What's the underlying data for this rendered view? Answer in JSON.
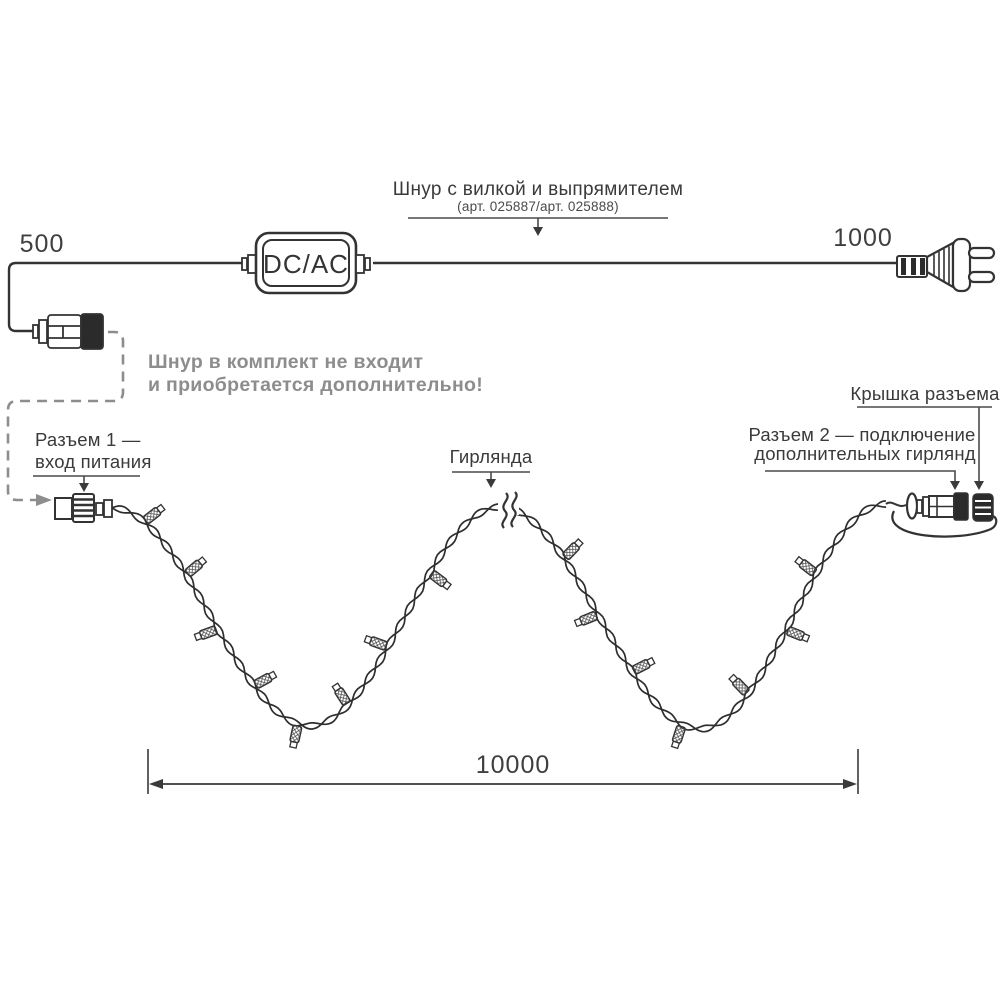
{
  "diagram": {
    "top": {
      "left_length": "500",
      "right_length": "1000",
      "converter_label": "DC/AC",
      "cord_callout_title": "Шнур с вилкой и выпрямителем",
      "cord_callout_subtitle": "(арт. 025887/арт. 025888)",
      "note_line1": "Шнур в комплект не входит",
      "note_line2": "и приобретается дополнительно!"
    },
    "bottom": {
      "connector1_line1": "Разъем 1 —",
      "connector1_line2": "вход питания",
      "garland_label": "Гирлянда",
      "connector2_line1": "Разъем 2 — подключение",
      "connector2_line2": "дополнительных гирлянд",
      "cap_label": "Крышка разъема",
      "total_length": "10000"
    },
    "colors": {
      "line": "#333333",
      "gray": "#8d8d8d"
    }
  }
}
